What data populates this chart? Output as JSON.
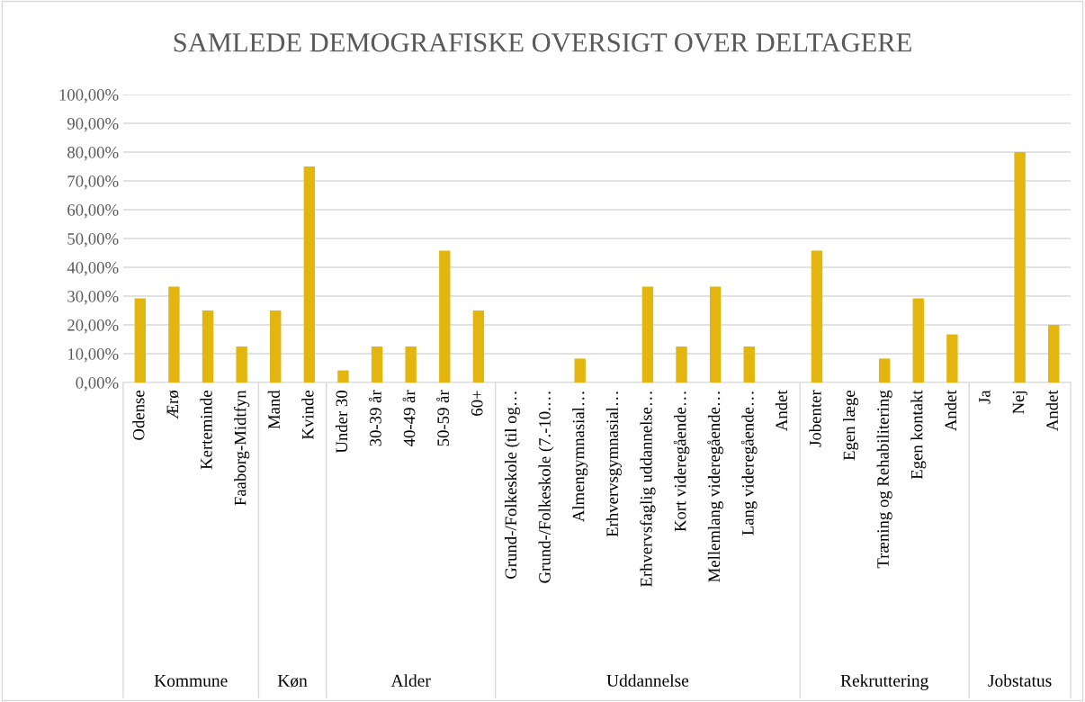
{
  "chart_data": {
    "type": "bar",
    "title": "SAMLEDE DEMOGRAFISKE OVERSIGT OVER DELTAGERE",
    "categories": [
      "Odense",
      "Ærø",
      "Kerteminde",
      "Faaborg-Midtfyn",
      "Mand",
      "Kvinde",
      "Under 30",
      "30-39 år",
      "40-49 år",
      "50-59 år",
      "60+",
      "Grund-/Folkeskole (til og…",
      "Grund-/Folkeskole (7.-10.…",
      "Almengymnasial…",
      "Erhvervsgymnasial…",
      "Erhvervsfaglig uddannelse…",
      "Kort videregående…",
      "Mellemlang videregående…",
      "Lang videregående…",
      "Andet",
      "Jobenter",
      "Egen læge",
      "Træning og Rehabilitering",
      "Egen kontakt",
      "Andet",
      "Ja",
      "Nej",
      "Andet"
    ],
    "values": [
      29.2,
      33.3,
      25,
      12.5,
      25,
      75,
      4.2,
      12.5,
      12.5,
      45.8,
      25,
      0,
      0,
      8.3,
      0,
      33.3,
      12.5,
      33.3,
      12.5,
      0,
      45.8,
      0,
      8.3,
      29.2,
      16.7,
      0,
      80,
      20
    ],
    "color": "#e2b60e",
    "ylim": [
      0,
      100
    ],
    "yticks": [
      {
        "value": 0,
        "label": "0,00%"
      },
      {
        "value": 10,
        "label": "10,00%"
      },
      {
        "value": 20,
        "label": "20,00%"
      },
      {
        "value": 30,
        "label": "30,00%"
      },
      {
        "value": 40,
        "label": "40,00%"
      },
      {
        "value": 50,
        "label": "50,00%"
      },
      {
        "value": 60,
        "label": "60,00%"
      },
      {
        "value": 70,
        "label": "70,00%"
      },
      {
        "value": 80,
        "label": "80,00%"
      },
      {
        "value": 90,
        "label": "90,00%"
      },
      {
        "value": 100,
        "label": "100,00%"
      }
    ],
    "grid": "y",
    "annotations": [
      "Kommune",
      "Køn",
      "Alder",
      "Uddannelse",
      "Rekruttering",
      "Jobstatus"
    ]
  }
}
